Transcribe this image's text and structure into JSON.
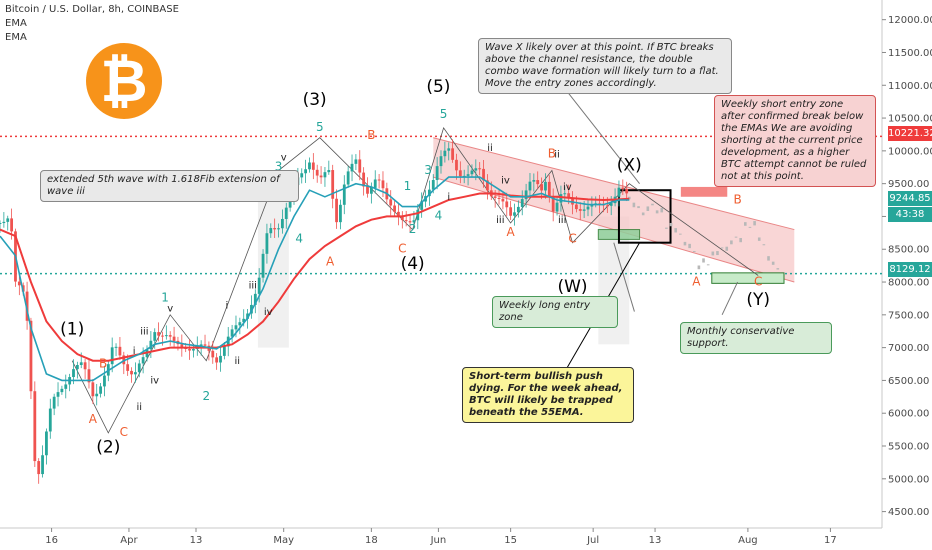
{
  "header": {
    "title": "Bitcoin / U.S. Dollar, 8h, COINBASE",
    "indicator_1": "EMA",
    "indicator_2": "EMA"
  },
  "logo": {
    "symbol": "₿",
    "color": "#f7931a"
  },
  "colors": {
    "up": "#26a69a",
    "down": "#ef5350",
    "ema_fast": "#26a0b8",
    "ema_slow": "#ef3b3b",
    "channel_fill": "#f7c4c4",
    "resistance_line": "#ef3b3b",
    "support_line": "#26a69a"
  },
  "price_tags": {
    "resistance": "10221.32",
    "current": "9244.85",
    "countdown": "43:38",
    "support": "8129.12"
  },
  "notes": {
    "wave_x": "Wave X likely over at this point. If BTC breaks above the channel resistance, the double combo wave formation will likely turn to a flat. Move the entry zones accordingly.",
    "weekly_short": "Weekly short entry zone after confirmed break below the EMAs We are avoiding shorting at the current price development, as a higher BTC attempt cannot be ruled not at this point.",
    "extended": "extended 5th wave with 1.618Fib extension of wave iii",
    "weekly_long": "Weekly long entry zone",
    "monthly": "Monthly conservative support.",
    "short_term": "Short-term bullish push dying. For the week ahead, BTC will likely be trapped beneath the 55EMA."
  },
  "chart_data": {
    "type": "candlestick",
    "title": "Bitcoin / U.S. Dollar, 8h, COINBASE",
    "y_axis": {
      "ticks": [
        12000,
        11500,
        11000,
        10500,
        10000,
        9500,
        9000,
        8500,
        8000,
        7500,
        7000,
        6500,
        6000,
        5500,
        5000,
        4500
      ],
      "tick_labels": [
        "12000.00",
        "11500.00",
        "11000.00",
        "10500.00",
        "10000.00",
        "9500.00",
        "9000.00",
        "8500.00",
        "8000.00",
        "7500.00",
        "7000.00",
        "6500.00",
        "6000.00",
        "5500.00",
        "5000.00",
        "4500.00"
      ],
      "range": [
        4250,
        12300
      ]
    },
    "x_axis": {
      "range": [
        0,
        171
      ],
      "ticks": [
        {
          "x": 10,
          "label": "16"
        },
        {
          "x": 25,
          "label": "Apr"
        },
        {
          "x": 38,
          "label": "13"
        },
        {
          "x": 55,
          "label": "May"
        },
        {
          "x": 72,
          "label": "18"
        },
        {
          "x": 85,
          "label": "Jun"
        },
        {
          "x": 99,
          "label": "15"
        },
        {
          "x": 115,
          "label": "Jul"
        },
        {
          "x": 127,
          "label": "13"
        },
        {
          "x": 145,
          "label": "Aug"
        },
        {
          "x": 161,
          "label": "17"
        }
      ]
    },
    "price_path": [
      [
        0,
        8900
      ],
      [
        2,
        9100
      ],
      [
        3,
        8000
      ],
      [
        5,
        7700
      ],
      [
        7,
        5000
      ],
      [
        8,
        5300
      ],
      [
        10,
        6100
      ],
      [
        12,
        6400
      ],
      [
        14,
        6700
      ],
      [
        16,
        6700
      ],
      [
        18,
        6300
      ],
      [
        19,
        6400
      ],
      [
        21,
        6700
      ],
      [
        22,
        7000
      ],
      [
        24,
        6800
      ],
      [
        26,
        6600
      ],
      [
        28,
        6800
      ],
      [
        30,
        7300
      ],
      [
        32,
        7200
      ],
      [
        34,
        7000
      ],
      [
        36,
        7050
      ],
      [
        38,
        7000
      ],
      [
        40,
        6950
      ],
      [
        42,
        6850
      ],
      [
        44,
        7100
      ],
      [
        46,
        7300
      ],
      [
        48,
        7600
      ],
      [
        50,
        7900
      ],
      [
        52,
        8800
      ],
      [
        54,
        8900
      ],
      [
        56,
        9200
      ],
      [
        58,
        9600
      ],
      [
        60,
        9900
      ],
      [
        62,
        9500
      ],
      [
        64,
        9700
      ],
      [
        65,
        8900
      ],
      [
        67,
        9600
      ],
      [
        69,
        9800
      ],
      [
        71,
        9400
      ],
      [
        73,
        9600
      ],
      [
        75,
        9200
      ],
      [
        77,
        9100
      ],
      [
        79,
        8900
      ],
      [
        80,
        8800
      ],
      [
        82,
        9300
      ],
      [
        84,
        9600
      ],
      [
        85,
        9800
      ],
      [
        87,
        10000
      ],
      [
        89,
        9700
      ],
      [
        91,
        9600
      ],
      [
        93,
        9700
      ],
      [
        95,
        9400
      ],
      [
        97,
        9200
      ],
      [
        99,
        9000
      ],
      [
        101,
        9300
      ],
      [
        103,
        9500
      ],
      [
        105,
        9400
      ],
      [
        106,
        9650
      ],
      [
        107,
        9100
      ],
      [
        109,
        9300
      ],
      [
        111,
        9200
      ],
      [
        113,
        9150
      ],
      [
        115,
        9100
      ],
      [
        117,
        9200
      ],
      [
        119,
        9300
      ],
      [
        120,
        9400
      ],
      [
        122,
        9244.85
      ]
    ],
    "ema_fast": [
      [
        0,
        8700
      ],
      [
        3,
        8400
      ],
      [
        6,
        7300
      ],
      [
        9,
        6600
      ],
      [
        12,
        6500
      ],
      [
        15,
        6500
      ],
      [
        18,
        6500
      ],
      [
        21,
        6650
      ],
      [
        24,
        6800
      ],
      [
        27,
        6900
      ],
      [
        30,
        7050
      ],
      [
        33,
        7100
      ],
      [
        36,
        7050
      ],
      [
        39,
        7020
      ],
      [
        42,
        6980
      ],
      [
        45,
        7150
      ],
      [
        48,
        7450
      ],
      [
        51,
        7900
      ],
      [
        54,
        8500
      ],
      [
        57,
        9000
      ],
      [
        60,
        9400
      ],
      [
        63,
        9300
      ],
      [
        66,
        9400
      ],
      [
        69,
        9500
      ],
      [
        72,
        9450
      ],
      [
        75,
        9350
      ],
      [
        78,
        9150
      ],
      [
        81,
        9150
      ],
      [
        84,
        9400
      ],
      [
        87,
        9600
      ],
      [
        90,
        9600
      ],
      [
        93,
        9600
      ],
      [
        96,
        9450
      ],
      [
        99,
        9300
      ],
      [
        102,
        9300
      ],
      [
        105,
        9350
      ],
      [
        108,
        9250
      ],
      [
        111,
        9220
      ],
      [
        114,
        9180
      ],
      [
        117,
        9180
      ],
      [
        120,
        9250
      ],
      [
        122,
        9250
      ]
    ],
    "ema_slow": [
      [
        0,
        8800
      ],
      [
        3,
        8700
      ],
      [
        6,
        8000
      ],
      [
        9,
        7400
      ],
      [
        12,
        7100
      ],
      [
        15,
        6900
      ],
      [
        18,
        6800
      ],
      [
        21,
        6800
      ],
      [
        24,
        6850
      ],
      [
        27,
        6900
      ],
      [
        30,
        6950
      ],
      [
        33,
        7000
      ],
      [
        36,
        7000
      ],
      [
        39,
        7000
      ],
      [
        42,
        7000
      ],
      [
        45,
        7050
      ],
      [
        48,
        7200
      ],
      [
        51,
        7400
      ],
      [
        54,
        7700
      ],
      [
        57,
        8050
      ],
      [
        60,
        8350
      ],
      [
        63,
        8550
      ],
      [
        66,
        8700
      ],
      [
        69,
        8850
      ],
      [
        72,
        8950
      ],
      [
        75,
        9000
      ],
      [
        78,
        9000
      ],
      [
        81,
        9050
      ],
      [
        84,
        9150
      ],
      [
        87,
        9250
      ],
      [
        90,
        9300
      ],
      [
        93,
        9350
      ],
      [
        96,
        9350
      ],
      [
        99,
        9320
      ],
      [
        102,
        9300
      ],
      [
        105,
        9300
      ],
      [
        108,
        9300
      ],
      [
        111,
        9280
      ],
      [
        114,
        9260
      ],
      [
        117,
        9250
      ],
      [
        120,
        9260
      ],
      [
        122,
        9270
      ]
    ],
    "projection": [
      [
        122,
        9244
      ],
      [
        125,
        9050
      ],
      [
        127,
        9200
      ],
      [
        129,
        8900
      ],
      [
        131,
        8800
      ],
      [
        133,
        8600
      ],
      [
        135,
        8400
      ],
      [
        136,
        8200
      ],
      [
        138,
        8400
      ],
      [
        140,
        8500
      ],
      [
        142,
        8600
      ],
      [
        144,
        8750
      ],
      [
        146,
        8950
      ],
      [
        147,
        8700
      ],
      [
        149,
        8400
      ],
      [
        151,
        8129
      ]
    ],
    "horizontal_levels": [
      {
        "value": 10221.32,
        "label": "10221.32"
      },
      {
        "value": 8129.12,
        "label": "8129.12"
      }
    ],
    "channel": {
      "upper": [
        [
          84,
          10200
        ],
        [
          154,
          8800
        ]
      ],
      "lower": [
        [
          84,
          9600
        ],
        [
          154,
          8000
        ]
      ]
    },
    "wave_labels": [
      {
        "x": 14,
        "y": 7200,
        "text": "(1)",
        "style": "major"
      },
      {
        "x": 21,
        "y": 5400,
        "text": "(2)",
        "style": "major"
      },
      {
        "x": 61,
        "y": 10700,
        "text": "(3)",
        "style": "major"
      },
      {
        "x": 80,
        "y": 8200,
        "text": "(4)",
        "style": "major"
      },
      {
        "x": 85,
        "y": 10900,
        "text": "(5)",
        "style": "major"
      },
      {
        "x": 111,
        "y": 7850,
        "text": "(W)",
        "style": "major"
      },
      {
        "x": 122,
        "y": 9700,
        "text": "(X)",
        "style": "major"
      },
      {
        "x": 147,
        "y": 7650,
        "text": "(Y)",
        "style": "major"
      },
      {
        "x": 32,
        "y": 7700,
        "text": "1",
        "style": "teal"
      },
      {
        "x": 40,
        "y": 6200,
        "text": "2",
        "style": "teal"
      },
      {
        "x": 54,
        "y": 9700,
        "text": "3",
        "style": "teal"
      },
      {
        "x": 58,
        "y": 8600,
        "text": "4",
        "style": "teal"
      },
      {
        "x": 62,
        "y": 10300,
        "text": "5",
        "style": "teal"
      },
      {
        "x": 79,
        "y": 9400,
        "text": "1",
        "style": "teal"
      },
      {
        "x": 80,
        "y": 8750,
        "text": "2",
        "style": "teal"
      },
      {
        "x": 83,
        "y": 9650,
        "text": "3",
        "style": "teal"
      },
      {
        "x": 85,
        "y": 8950,
        "text": "4",
        "style": "teal"
      },
      {
        "x": 86,
        "y": 10500,
        "text": "5",
        "style": "teal"
      },
      {
        "x": 20,
        "y": 6700,
        "text": "B",
        "style": "orange"
      },
      {
        "x": 18,
        "y": 5850,
        "text": "A",
        "style": "orange"
      },
      {
        "x": 24,
        "y": 5650,
        "text": "C",
        "style": "orange"
      },
      {
        "x": 72,
        "y": 10180,
        "text": "B",
        "style": "orange"
      },
      {
        "x": 64,
        "y": 8250,
        "text": "A",
        "style": "orange"
      },
      {
        "x": 78,
        "y": 8450,
        "text": "C",
        "style": "orange"
      },
      {
        "x": 107,
        "y": 9900,
        "text": "B",
        "style": "orange"
      },
      {
        "x": 99,
        "y": 8700,
        "text": "A",
        "style": "orange"
      },
      {
        "x": 111,
        "y": 8600,
        "text": "C",
        "style": "orange"
      },
      {
        "x": 143,
        "y": 9200,
        "text": "B",
        "style": "orange"
      },
      {
        "x": 135,
        "y": 7950,
        "text": "A",
        "style": "orange"
      },
      {
        "x": 147,
        "y": 7950,
        "text": "C",
        "style": "orange"
      },
      {
        "x": 26,
        "y": 6900,
        "text": "i",
        "style": "small"
      },
      {
        "x": 28,
        "y": 7200,
        "text": "iii",
        "style": "small"
      },
      {
        "x": 30,
        "y": 6450,
        "text": "iv",
        "style": "small"
      },
      {
        "x": 33,
        "y": 7550,
        "text": "v",
        "style": "small"
      },
      {
        "x": 27,
        "y": 6050,
        "text": "ii",
        "style": "small"
      },
      {
        "x": 44,
        "y": 7600,
        "text": "i",
        "style": "small"
      },
      {
        "x": 49,
        "y": 7900,
        "text": "iii",
        "style": "small"
      },
      {
        "x": 52,
        "y": 7500,
        "text": "iv",
        "style": "small"
      },
      {
        "x": 46,
        "y": 6750,
        "text": "ii",
        "style": "small"
      },
      {
        "x": 55,
        "y": 9850,
        "text": "v",
        "style": "small"
      },
      {
        "x": 95,
        "y": 10000,
        "text": "ii",
        "style": "small"
      },
      {
        "x": 98,
        "y": 9500,
        "text": "iv",
        "style": "small"
      },
      {
        "x": 97,
        "y": 8900,
        "text": "iii",
        "style": "small"
      },
      {
        "x": 87,
        "y": 9250,
        "text": "i",
        "style": "small"
      },
      {
        "x": 108,
        "y": 9900,
        "text": "ii",
        "style": "small"
      },
      {
        "x": 110,
        "y": 9400,
        "text": "iv",
        "style": "small"
      },
      {
        "x": 109,
        "y": 8900,
        "text": "iii",
        "style": "small"
      }
    ]
  }
}
